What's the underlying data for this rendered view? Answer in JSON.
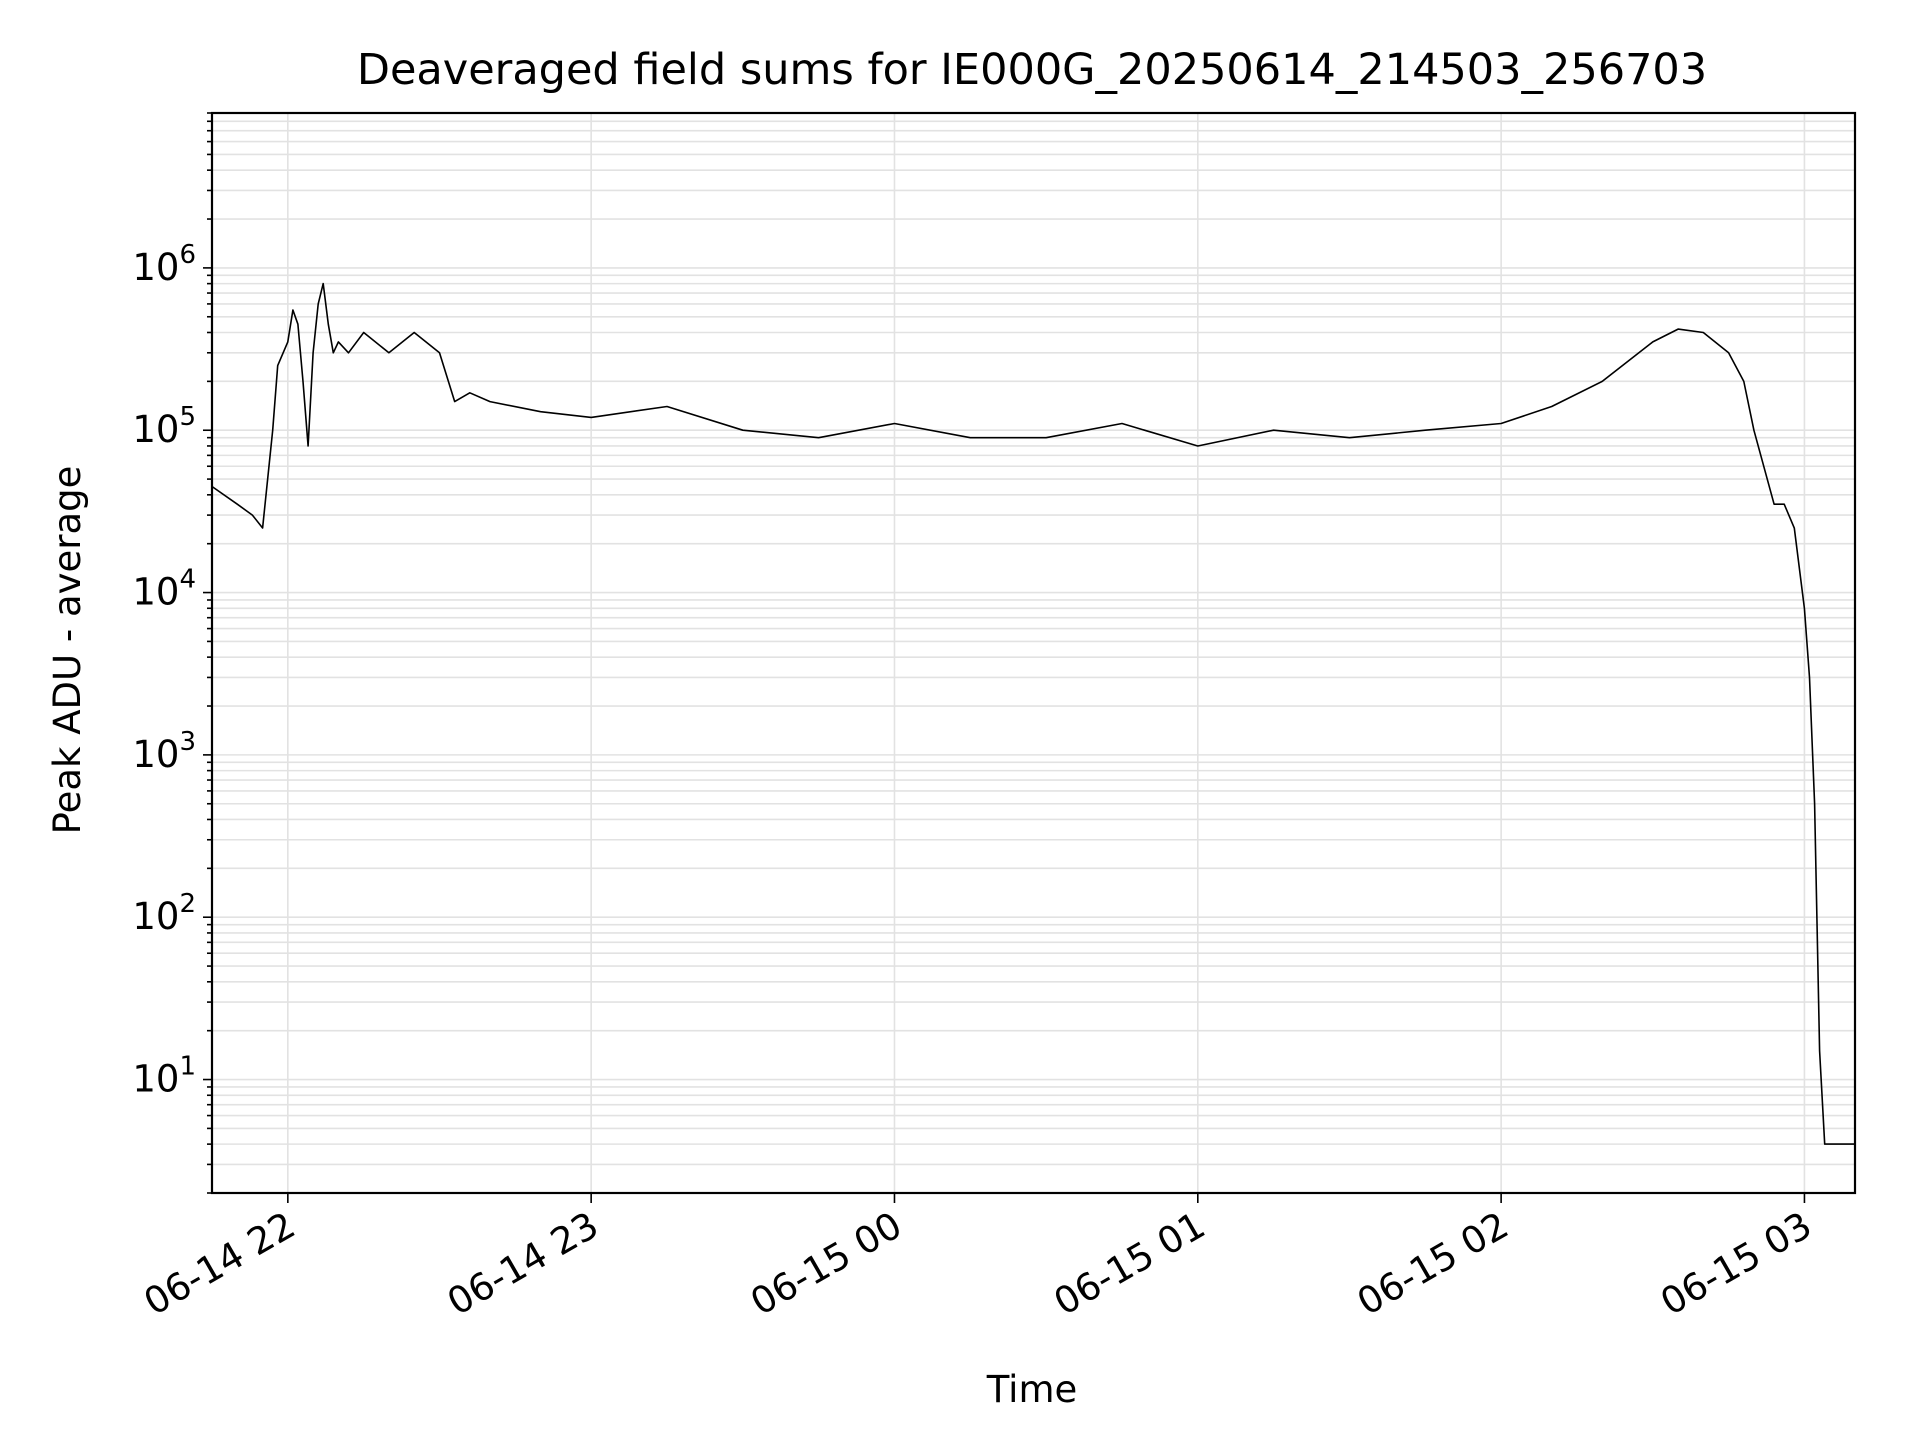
{
  "chart_data": {
    "type": "line",
    "title": "Deaveraged field sums for IE000G_20250614_214503_256703",
    "xlabel": "Time",
    "ylabel": "Peak ADU - average",
    "yscale": "log",
    "grid": true,
    "line_color": "#000000",
    "xlim": [
      "2025-06-14 21:45",
      "2025-06-15 03:10"
    ],
    "ylim": [
      2,
      9000000
    ],
    "x_ticks": [
      {
        "label": "06-14 22",
        "t": "2025-06-14 22:00"
      },
      {
        "label": "06-14 23",
        "t": "2025-06-14 23:00"
      },
      {
        "label": "06-15 00",
        "t": "2025-06-15 00:00"
      },
      {
        "label": "06-15 01",
        "t": "2025-06-15 01:00"
      },
      {
        "label": "06-15 02",
        "t": "2025-06-15 02:00"
      },
      {
        "label": "06-15 03",
        "t": "2025-06-15 03:00"
      }
    ],
    "y_ticks": [
      {
        "base": "10",
        "exp": "1",
        "value": 10
      },
      {
        "base": "10",
        "exp": "2",
        "value": 100
      },
      {
        "base": "10",
        "exp": "3",
        "value": 1000
      },
      {
        "base": "10",
        "exp": "4",
        "value": 10000
      },
      {
        "base": "10",
        "exp": "5",
        "value": 100000
      },
      {
        "base": "10",
        "exp": "6",
        "value": 1000000
      }
    ],
    "series": [
      {
        "x": [
          "2025-06-14 21:45",
          "2025-06-14 21:50",
          "2025-06-14 21:53",
          "2025-06-14 21:55",
          "2025-06-14 21:57",
          "2025-06-14 21:58",
          "2025-06-14 22:00",
          "2025-06-14 22:01",
          "2025-06-14 22:02",
          "2025-06-14 22:03",
          "2025-06-14 22:04",
          "2025-06-14 22:05",
          "2025-06-14 22:06",
          "2025-06-14 22:07",
          "2025-06-14 22:08",
          "2025-06-14 22:09",
          "2025-06-14 22:10",
          "2025-06-14 22:12",
          "2025-06-14 22:15",
          "2025-06-14 22:20",
          "2025-06-14 22:25",
          "2025-06-14 22:30",
          "2025-06-14 22:33",
          "2025-06-14 22:36",
          "2025-06-14 22:40",
          "2025-06-14 22:50",
          "2025-06-14 23:00",
          "2025-06-14 23:15",
          "2025-06-14 23:30",
          "2025-06-14 23:45",
          "2025-06-15 00:00",
          "2025-06-15 00:15",
          "2025-06-15 00:30",
          "2025-06-15 00:45",
          "2025-06-15 01:00",
          "2025-06-15 01:15",
          "2025-06-15 01:30",
          "2025-06-15 01:45",
          "2025-06-15 02:00",
          "2025-06-15 02:10",
          "2025-06-15 02:20",
          "2025-06-15 02:30",
          "2025-06-15 02:35",
          "2025-06-15 02:40",
          "2025-06-15 02:45",
          "2025-06-15 02:48",
          "2025-06-15 02:50",
          "2025-06-15 02:54",
          "2025-06-15 02:56",
          "2025-06-15 02:58",
          "2025-06-15 03:00",
          "2025-06-15 03:01",
          "2025-06-15 03:02",
          "2025-06-15 03:03",
          "2025-06-15 03:04",
          "2025-06-15 03:06",
          "2025-06-15 03:08",
          "2025-06-15 03:10"
        ],
        "y": [
          45000,
          35000,
          30000,
          25000,
          100000,
          250000,
          350000,
          550000,
          450000,
          200000,
          80000,
          300000,
          600000,
          800000,
          450000,
          300000,
          350000,
          300000,
          400000,
          300000,
          400000,
          300000,
          150000,
          170000,
          150000,
          130000,
          120000,
          140000,
          100000,
          90000,
          110000,
          90000,
          90000,
          110000,
          80000,
          100000,
          90000,
          100000,
          110000,
          140000,
          200000,
          350000,
          420000,
          400000,
          300000,
          200000,
          100000,
          35000,
          35000,
          25000,
          8000,
          3000,
          500,
          15,
          4,
          4,
          4,
          4
        ]
      }
    ]
  }
}
